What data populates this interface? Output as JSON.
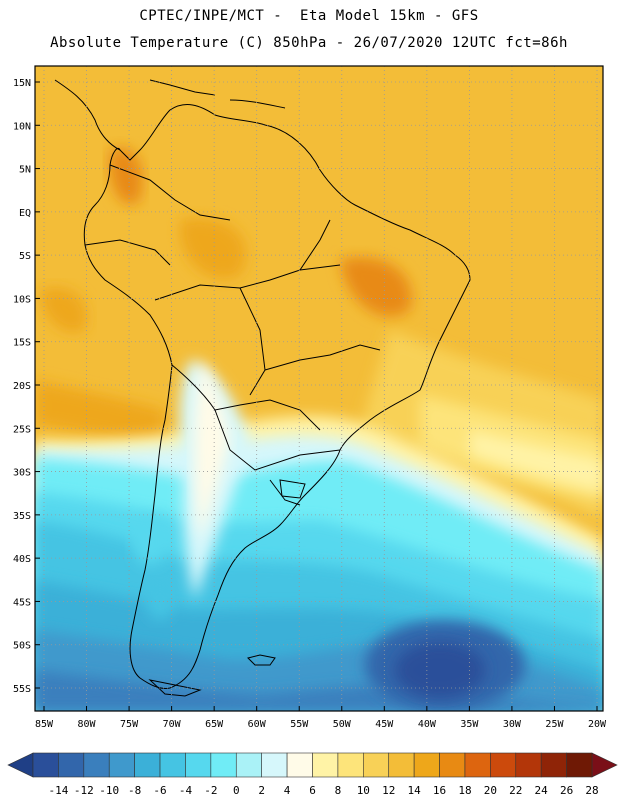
{
  "header": {
    "line1": "CPTEC/INPE/MCT -  Eta Model 15km - GFS",
    "line2": "Absolute Temperature (C) 850hPa - 26/07/2020 12UTC fct=86h"
  },
  "map": {
    "lat_labels": [
      "15N",
      "10N",
      "5N",
      "EQ",
      "5S",
      "10S",
      "15S",
      "20S",
      "25S",
      "30S",
      "35S",
      "40S",
      "45S",
      "50S",
      "55S"
    ],
    "lon_labels": [
      "85W",
      "80W",
      "75W",
      "70W",
      "65W",
      "60W",
      "55W",
      "50W",
      "45W",
      "40W",
      "35W",
      "30W",
      "25W",
      "20W"
    ],
    "lat_values": [
      15,
      10,
      5,
      0,
      -5,
      -10,
      -15,
      -20,
      -25,
      -30,
      -35,
      -40,
      -45,
      -50,
      -55
    ],
    "lon_values": [
      -85,
      -80,
      -75,
      -70,
      -65,
      -60,
      -55,
      -50,
      -45,
      -40,
      -35,
      -30,
      -25,
      -20
    ]
  },
  "colorbar": {
    "labels": [
      "-14",
      "-12",
      "-10",
      "-8",
      "-6",
      "-4",
      "-2",
      "0",
      "2",
      "4",
      "6",
      "8",
      "10",
      "12",
      "14",
      "16",
      "18",
      "20",
      "22",
      "24",
      "26",
      "28"
    ],
    "colors": [
      "#2a4f9a",
      "#3266ab",
      "#3a7fbd",
      "#3f99cc",
      "#3bb0d8",
      "#45c4e3",
      "#56d8ee",
      "#70ecf6",
      "#aaf2f7",
      "#d6f7fb",
      "#fffbe8",
      "#fff3a6",
      "#fde47a",
      "#f8d157",
      "#f3bd38",
      "#eea71a",
      "#e88a13",
      "#dd650f",
      "#cc4a0c",
      "#b33609",
      "#8f2407",
      "#6f1905"
    ],
    "below_color": "#1f3f86",
    "above_color": "#7a0f18"
  }
}
